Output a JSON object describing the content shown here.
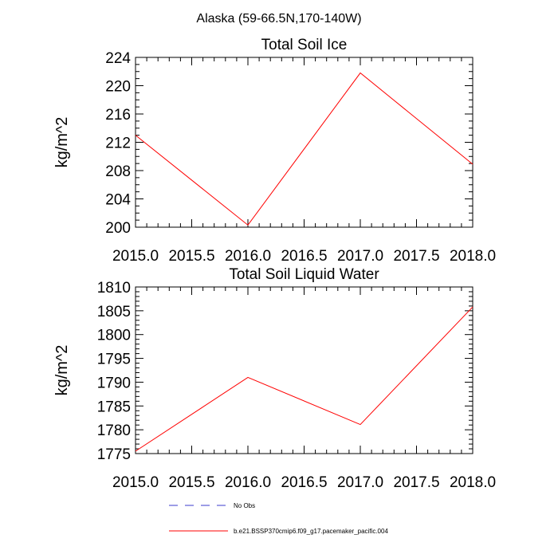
{
  "figure": {
    "title": "Alaska (59-66.5N,170-140W)"
  },
  "chart_data": [
    {
      "type": "line",
      "title": "Total Soil Ice",
      "xlabel": "",
      "ylabel": "kg/m^2",
      "xlim": [
        2015.0,
        2018.0
      ],
      "ylim": [
        200,
        224
      ],
      "xticks": [
        2015.0,
        2015.5,
        2016.0,
        2016.5,
        2017.0,
        2017.5,
        2018.0
      ],
      "xtick_labels": [
        "2015.0",
        "2015.5",
        "2016.0",
        "2016.5",
        "2017.0",
        "2017.5",
        "2018.0"
      ],
      "yticks": [
        200,
        204,
        208,
        212,
        216,
        220,
        224
      ],
      "ytick_labels": [
        "200",
        "204",
        "208",
        "212",
        "216",
        "220",
        "224"
      ],
      "x": [
        2015.0,
        2016.0,
        2017.0,
        2018.0
      ],
      "series": [
        {
          "name": "b.e21.BSSP370cmip6.f09_g17.pacemaker_pacific.004",
          "values": [
            213.0,
            200.3,
            221.8,
            208.9
          ],
          "color": "#ff0000"
        }
      ]
    },
    {
      "type": "line",
      "title": "Total Soil Liquid Water",
      "xlabel": "",
      "ylabel": "kg/m^2",
      "xlim": [
        2015.0,
        2018.0
      ],
      "ylim": [
        1775,
        1810
      ],
      "xticks": [
        2015.0,
        2015.5,
        2016.0,
        2016.5,
        2017.0,
        2017.5,
        2018.0
      ],
      "xtick_labels": [
        "2015.0",
        "2015.5",
        "2016.0",
        "2016.5",
        "2017.0",
        "2017.5",
        "2018.0"
      ],
      "yticks": [
        1775,
        1780,
        1785,
        1790,
        1795,
        1800,
        1805,
        1810
      ],
      "ytick_labels": [
        "1775",
        "1780",
        "1785",
        "1790",
        "1795",
        "1800",
        "1805",
        "1810"
      ],
      "x": [
        2015.0,
        2016.0,
        2017.0,
        2018.0
      ],
      "series": [
        {
          "name": "b.e21.BSSP370cmip6.f09_g17.pacemaker_pacific.004",
          "values": [
            1775.5,
            1791.0,
            1781.1,
            1805.8
          ],
          "color": "#ff0000"
        }
      ]
    }
  ],
  "legend": {
    "items": [
      {
        "label": "No Obs",
        "color": "#3b3bcc",
        "style": "dashed"
      },
      {
        "label": "b.e21.BSSP370cmip6.f09_g17.pacemaker_pacific.004",
        "color": "#ff0000",
        "style": "solid"
      }
    ]
  }
}
